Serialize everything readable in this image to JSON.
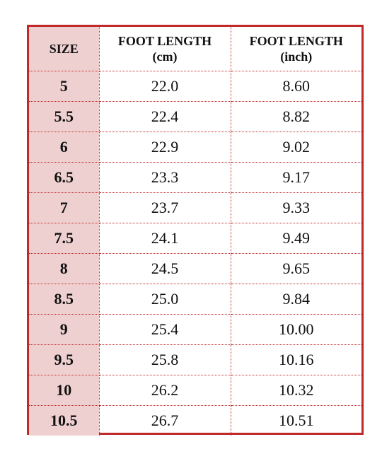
{
  "table": {
    "headers": {
      "size": "SIZE",
      "cm_line1": "FOOT LENGTH",
      "cm_line2": "(cm)",
      "inch_line1": "FOOT LENGTH",
      "inch_line2": "(inch)"
    },
    "rows": [
      {
        "size": "5",
        "cm": "22.0",
        "inch": "8.60"
      },
      {
        "size": "5.5",
        "cm": "22.4",
        "inch": "8.82"
      },
      {
        "size": "6",
        "cm": "22.9",
        "inch": "9.02"
      },
      {
        "size": "6.5",
        "cm": "23.3",
        "inch": "9.17"
      },
      {
        "size": "7",
        "cm": "23.7",
        "inch": "9.33"
      },
      {
        "size": "7.5",
        "cm": "24.1",
        "inch": "9.49"
      },
      {
        "size": "8",
        "cm": "24.5",
        "inch": "9.65"
      },
      {
        "size": "8.5",
        "cm": "25.0",
        "inch": "9.84"
      },
      {
        "size": "9",
        "cm": "25.4",
        "inch": "10.00"
      },
      {
        "size": "9.5",
        "cm": "25.8",
        "inch": "10.16"
      },
      {
        "size": "10",
        "cm": "26.2",
        "inch": "10.32"
      },
      {
        "size": "10.5",
        "cm": "26.7",
        "inch": "10.51"
      }
    ]
  },
  "colors": {
    "border": "#c0282a",
    "size_column_fill": "#efd0d0"
  }
}
